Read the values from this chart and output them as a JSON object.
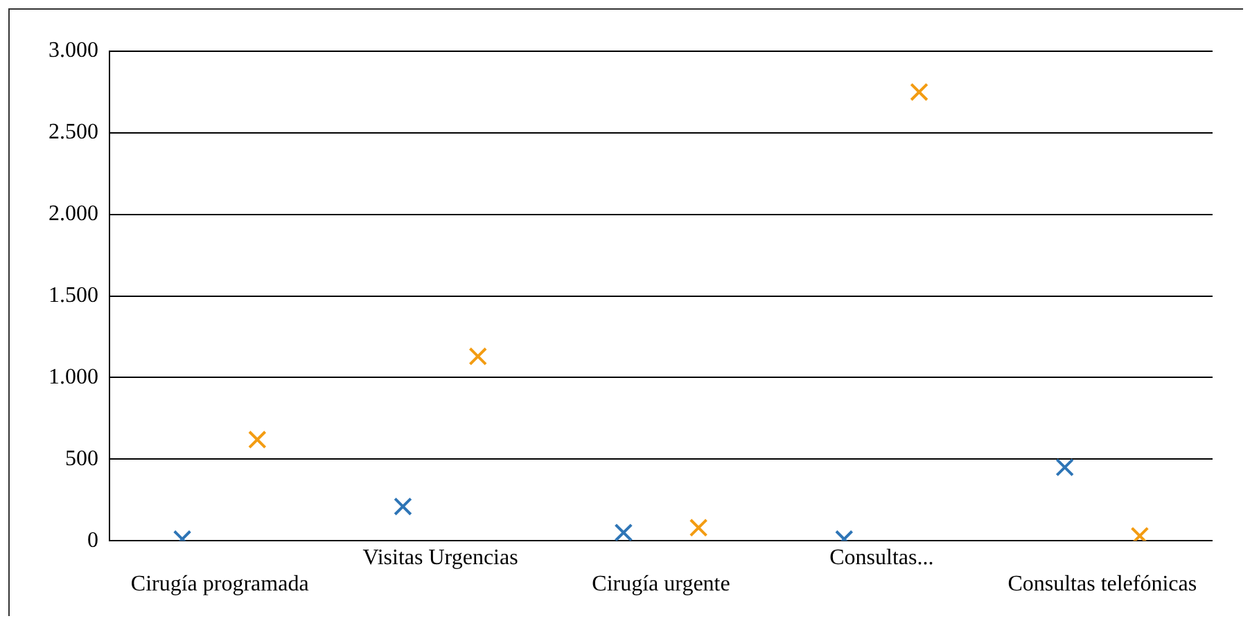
{
  "chart_data": {
    "type": "scatter",
    "categories": [
      "Cirugía programada",
      "Visitas Urgencias",
      "Cirugía urgente",
      "Consultas...",
      "Consultas telefónicas"
    ],
    "series": [
      {
        "color": "#2e75b6",
        "values": [
          10,
          210,
          50,
          10,
          450
        ]
      },
      {
        "color": "#f39c12",
        "values": [
          620,
          1130,
          80,
          2750,
          30
        ]
      }
    ],
    "ylim": [
      0,
      3000
    ],
    "yticks": [
      {
        "value": 0,
        "label": "0"
      },
      {
        "value": 500,
        "label": "500"
      },
      {
        "value": 1000,
        "label": "1.000"
      },
      {
        "value": 1500,
        "label": "1.500"
      },
      {
        "value": 2000,
        "label": "2.000"
      },
      {
        "value": 2500,
        "label": "2.500"
      },
      {
        "value": 3000,
        "label": "3.000"
      }
    ],
    "grid": "y",
    "legend": false,
    "marker": "cross"
  }
}
